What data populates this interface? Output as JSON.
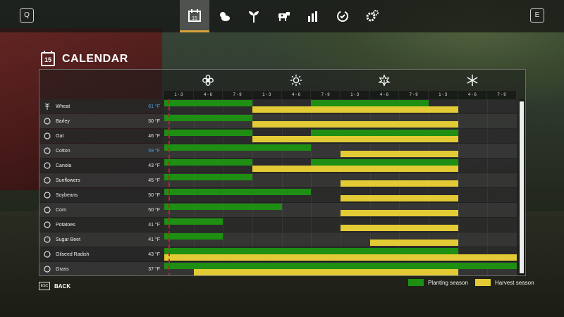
{
  "topbar": {
    "left_key": "Q",
    "right_key": "E",
    "tabs": [
      {
        "icon": "calendar-icon",
        "text": "15",
        "active": true
      },
      {
        "icon": "weather-icon",
        "active": false
      },
      {
        "icon": "sprout-icon",
        "active": false
      },
      {
        "icon": "cow-icon",
        "active": false
      },
      {
        "icon": "chart-icon",
        "active": false
      },
      {
        "icon": "cycle-icon",
        "active": false
      },
      {
        "icon": "gears-icon",
        "active": false
      }
    ]
  },
  "title": {
    "icon_text": "15",
    "text": "CALENDAR"
  },
  "seasons": [
    {
      "name": "spring",
      "icon": "flower-icon"
    },
    {
      "name": "summer",
      "icon": "sun-icon"
    },
    {
      "name": "autumn",
      "icon": "leaf-icon"
    },
    {
      "name": "winter",
      "icon": "snowflake-icon"
    }
  ],
  "months": [
    "1 - 3",
    "4 - 6",
    "7 - 9",
    "1 - 3",
    "4 - 6",
    "7 - 9",
    "1 - 3",
    "4 - 6",
    "7 - 9",
    "1 - 3",
    "4 - 6",
    "7 - 9"
  ],
  "crops": [
    {
      "name": "Wheat",
      "temp": "61 °F",
      "temp_color": "#4aa3e0",
      "icon": "wheat-icon",
      "plant": [
        [
          0,
          3
        ],
        [
          5,
          9
        ]
      ],
      "harvest": [
        [
          3,
          10
        ]
      ]
    },
    {
      "name": "Barley",
      "temp": "50 °F",
      "icon": "barley-icon",
      "plant": [
        [
          0,
          3
        ]
      ],
      "harvest": [
        [
          3,
          10
        ]
      ]
    },
    {
      "name": "Oat",
      "temp": "46 °F",
      "icon": "oat-icon",
      "plant": [
        [
          0,
          3
        ],
        [
          5,
          10
        ]
      ],
      "harvest": [
        [
          3,
          10
        ]
      ]
    },
    {
      "name": "Cotton",
      "temp": "59 °F",
      "temp_color": "#4aa3e0",
      "icon": "cotton-icon",
      "plant": [
        [
          0,
          5
        ]
      ],
      "harvest": [
        [
          6,
          10
        ]
      ]
    },
    {
      "name": "Canola",
      "temp": "43 °F",
      "icon": "canola-icon",
      "plant": [
        [
          0,
          3
        ],
        [
          5,
          10
        ]
      ],
      "harvest": [
        [
          3,
          10
        ]
      ]
    },
    {
      "name": "Sunflowers",
      "temp": "45 °F",
      "icon": "sunflower-icon",
      "plant": [
        [
          0,
          3
        ]
      ],
      "harvest": [
        [
          6,
          10
        ]
      ]
    },
    {
      "name": "Soybeans",
      "temp": "50 °F",
      "icon": "soybean-icon",
      "plant": [
        [
          0,
          5
        ]
      ],
      "harvest": [
        [
          6,
          10
        ]
      ]
    },
    {
      "name": "Corn",
      "temp": "50 °F",
      "icon": "corn-icon",
      "plant": [
        [
          0,
          4
        ]
      ],
      "harvest": [
        [
          6,
          10
        ]
      ]
    },
    {
      "name": "Potatoes",
      "temp": "41 °F",
      "icon": "potato-icon",
      "plant": [
        [
          0,
          2
        ]
      ],
      "harvest": [
        [
          6,
          10
        ]
      ]
    },
    {
      "name": "Sugar Beet",
      "temp": "41 °F",
      "icon": "sugarbeet-icon",
      "plant": [
        [
          0,
          2
        ]
      ],
      "harvest": [
        [
          7,
          10
        ]
      ]
    },
    {
      "name": "Oilseed Radish",
      "temp": "43 °F",
      "icon": "radish-icon",
      "plant": [
        [
          0,
          10
        ]
      ],
      "harvest": [
        [
          0,
          12
        ]
      ]
    },
    {
      "name": "Grass",
      "temp": "37 °F",
      "icon": "grass-icon",
      "plant": [
        [
          0,
          12
        ]
      ],
      "harvest": [
        [
          1,
          10
        ]
      ]
    }
  ],
  "colors": {
    "planting": "#1e8f13",
    "harvest": "#e3cb35",
    "accent": "#d9a13a",
    "today_line": "#c81e1e"
  },
  "back": {
    "key": "ESC",
    "label": "BACK"
  },
  "legend": {
    "planting_label": "Planting season",
    "harvest_label": "Harvest season"
  }
}
